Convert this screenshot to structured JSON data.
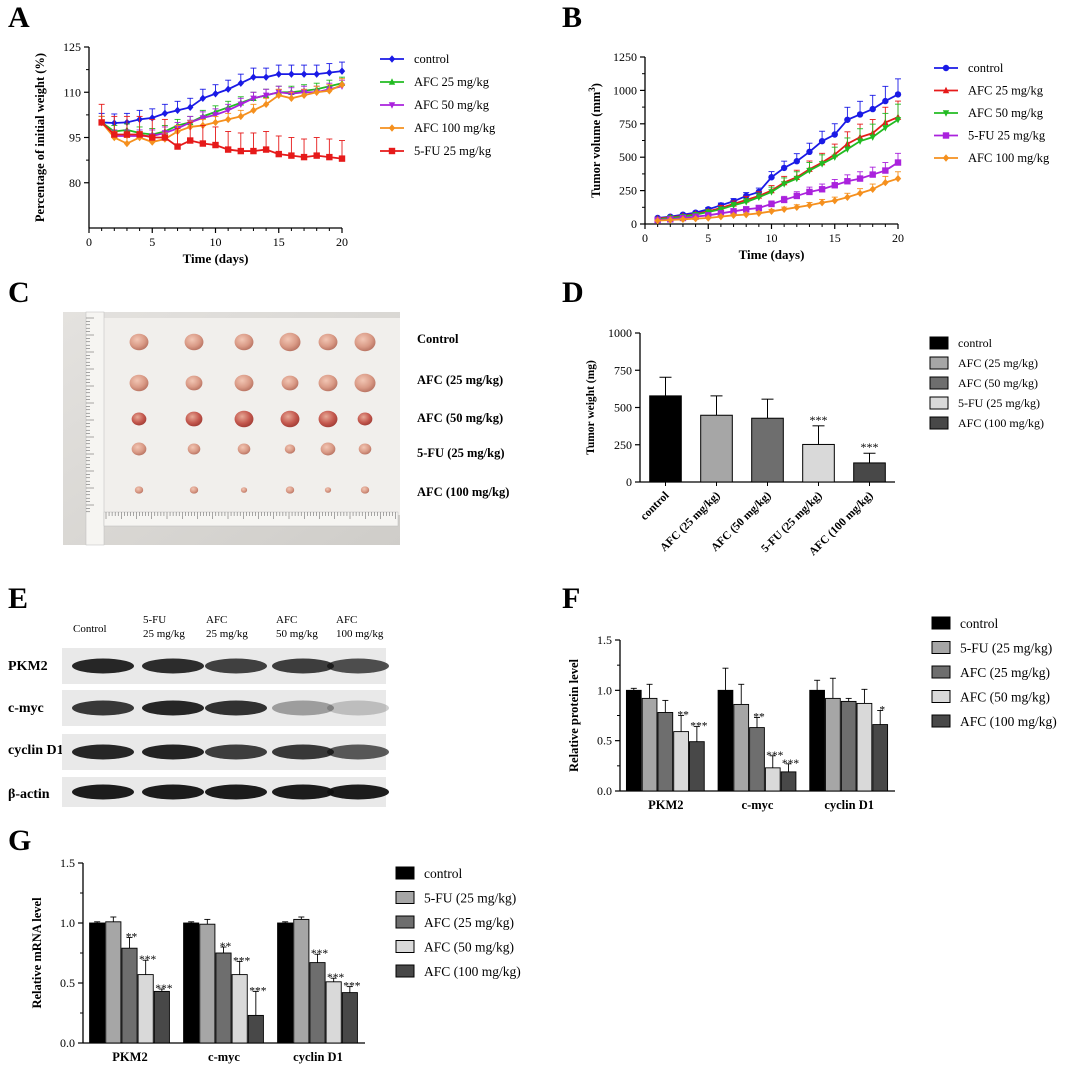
{
  "figure": {
    "panel_letters": [
      "A",
      "B",
      "C",
      "D",
      "E",
      "F",
      "G"
    ],
    "colors": {
      "control": "#1a1ae6",
      "afc25_line": "#22bb22",
      "afc50_line": "#aa22dd",
      "afc100_line": "#f5901e",
      "fu_line": "#e61a1a"
    }
  },
  "chart_data": [
    {
      "panel": "A",
      "type": "line",
      "title": "",
      "xlabel": "Time (days)",
      "ylabel": "Percentage of initial weight (%)",
      "xlim": [
        0,
        20
      ],
      "ylim": [
        65,
        125
      ],
      "xticks": [
        0,
        5,
        10,
        15,
        20
      ],
      "yticks": [
        80,
        95,
        110,
        125
      ],
      "x": [
        1,
        2,
        3,
        4,
        5,
        6,
        7,
        8,
        9,
        10,
        11,
        12,
        13,
        14,
        15,
        16,
        17,
        18,
        19,
        20
      ],
      "series": [
        {
          "name": "control",
          "color": "#1a1ae6",
          "marker": "diamond",
          "err": 3,
          "values": [
            100,
            99.8,
            100,
            101,
            101.5,
            103,
            104,
            105,
            108,
            109.5,
            111,
            113,
            115,
            115,
            116,
            116,
            116,
            116,
            116.5,
            117
          ]
        },
        {
          "name": "AFC 25 mg/kg",
          "color": "#22bb22",
          "marker": "triangle-up",
          "err": 2,
          "values": [
            100,
            97,
            97.5,
            96.5,
            96,
            97,
            99,
            100,
            102,
            103.5,
            105,
            106.5,
            108,
            109,
            110,
            110,
            110.5,
            111,
            112,
            113
          ]
        },
        {
          "name": "AFC 50 mg/kg",
          "color": "#aa22dd",
          "marker": "triangle-down",
          "err": 2,
          "values": [
            100,
            95.5,
            95.5,
            95.5,
            95.5,
            96.5,
            98,
            100,
            101.5,
            102.5,
            104,
            106,
            108,
            109,
            110,
            109.5,
            110,
            110,
            111,
            112
          ]
        },
        {
          "name": "AFC 100 mg/kg",
          "color": "#f5901e",
          "marker": "diamond",
          "err": 2,
          "values": [
            100,
            95,
            93,
            95,
            93.5,
            94.5,
            97,
            98.5,
            99,
            100,
            101,
            102,
            104,
            106,
            109,
            108,
            109,
            110,
            110.5,
            112.5
          ]
        },
        {
          "name": "5-FU 25 mg/kg",
          "color": "#e61a1a",
          "marker": "square",
          "err": 6,
          "values": [
            100,
            96,
            96,
            96,
            95,
            95,
            92,
            94,
            93,
            92.5,
            91,
            90.5,
            90.5,
            91,
            89.5,
            89,
            88.5,
            89,
            88.5,
            88
          ]
        }
      ]
    },
    {
      "panel": "B",
      "type": "line",
      "title": "",
      "xlabel": "Time (days)",
      "ylabel": "Tumor volume (mm",
      "ylabel_sup": "3",
      "ylabel_end": ")",
      "xlim": [
        0,
        20
      ],
      "ylim": [
        0,
        1250
      ],
      "xticks": [
        0,
        5,
        10,
        15,
        20
      ],
      "yticks": [
        0,
        250,
        500,
        750,
        1000,
        1250
      ],
      "x": [
        1,
        2,
        3,
        4,
        5,
        6,
        7,
        8,
        9,
        10,
        11,
        12,
        13,
        14,
        15,
        16,
        17,
        18,
        19,
        20
      ],
      "series": [
        {
          "name": "control",
          "color": "#1a1ae6",
          "marker": "circle",
          "err_frac": 0.12,
          "values": [
            45,
            55,
            70,
            85,
            110,
            140,
            170,
            210,
            240,
            350,
            420,
            470,
            540,
            620,
            670,
            780,
            820,
            860,
            920,
            970
          ]
        },
        {
          "name": "AFC 25 mg/kg",
          "color": "#e61a1a",
          "marker": "triangle-up",
          "err_frac": 0.15,
          "values": [
            40,
            50,
            60,
            75,
            95,
            120,
            150,
            180,
            210,
            250,
            310,
            350,
            410,
            460,
            520,
            600,
            650,
            680,
            760,
            800
          ]
        },
        {
          "name": "AFC 50 mg/kg",
          "color": "#22bb22",
          "marker": "triangle-down",
          "err_frac": 0.15,
          "values": [
            35,
            45,
            55,
            70,
            90,
            110,
            140,
            165,
            200,
            240,
            300,
            340,
            400,
            450,
            500,
            560,
            620,
            650,
            720,
            780
          ]
        },
        {
          "name": "5-FU 25 mg/kg",
          "color": "#aa22dd",
          "marker": "square",
          "err_frac": 0.15,
          "values": [
            30,
            35,
            45,
            55,
            65,
            80,
            95,
            110,
            120,
            150,
            180,
            210,
            240,
            260,
            290,
            320,
            340,
            370,
            400,
            460
          ]
        },
        {
          "name": "AFC 100 mg/kg",
          "color": "#f5901e",
          "marker": "diamond",
          "err_frac": 0.15,
          "values": [
            25,
            30,
            35,
            40,
            45,
            55,
            65,
            70,
            80,
            95,
            110,
            125,
            140,
            160,
            175,
            200,
            230,
            260,
            310,
            340
          ]
        }
      ]
    },
    {
      "panel": "D",
      "type": "bar",
      "xlabel": "",
      "ylabel": "Tumor weight (mg)",
      "ylim": [
        0,
        1000
      ],
      "yticks": [
        0,
        250,
        500,
        750,
        1000
      ],
      "categories": [
        "control",
        "AFC (25 mg/kg)",
        "AFC (50 mg/kg)",
        "5-FU (25 mg/kg)",
        "AFC (100 mg/kg)"
      ],
      "values": [
        578,
        448,
        428,
        252,
        128
      ],
      "errors": [
        125,
        130,
        128,
        125,
        65
      ],
      "significance": [
        "",
        "",
        "",
        "***",
        "***"
      ],
      "bar_colors": [
        "#000000",
        "#a6a6a6",
        "#6e6e6e",
        "#d9d9d9",
        "#484848"
      ],
      "legend": [
        "control",
        "AFC (25 mg/kg)",
        "AFC (50 mg/kg)",
        "5-FU (25 mg/kg)",
        "AFC (100 mg/kg)"
      ]
    },
    {
      "panel": "F",
      "type": "bar",
      "xlabel": "",
      "ylabel": "Relative protein level",
      "ylim": [
        0,
        1.5
      ],
      "yticks": [
        0.0,
        0.5,
        1.0,
        1.5
      ],
      "categories": [
        "PKM2",
        "c-myc",
        "cyclin D1"
      ],
      "series": [
        {
          "name": "control",
          "values": [
            1.0,
            1.0,
            1.0
          ],
          "errors": [
            0.02,
            0.22,
            0.1
          ],
          "sig": [
            "",
            "",
            ""
          ],
          "color": "#000000"
        },
        {
          "name": "5-FU (25 mg/kg)",
          "values": [
            0.92,
            0.86,
            0.92
          ],
          "errors": [
            0.14,
            0.2,
            0.2
          ],
          "sig": [
            "",
            "",
            ""
          ],
          "color": "#a6a6a6"
        },
        {
          "name": "AFC (25 mg/kg)",
          "values": [
            0.78,
            0.63,
            0.89
          ],
          "errors": [
            0.12,
            0.1,
            0.03
          ],
          "sig": [
            "",
            "**",
            ""
          ],
          "color": "#6e6e6e"
        },
        {
          "name": "AFC (50 mg/kg)",
          "values": [
            0.59,
            0.23,
            0.87
          ],
          "errors": [
            0.16,
            0.12,
            0.14
          ],
          "sig": [
            "**",
            "***",
            ""
          ],
          "color": "#d9d9d9"
        },
        {
          "name": "AFC (100 mg/kg)",
          "values": [
            0.49,
            0.19,
            0.66
          ],
          "errors": [
            0.15,
            0.08,
            0.14
          ],
          "sig": [
            "***",
            "***",
            "*"
          ],
          "color": "#484848"
        }
      ]
    },
    {
      "panel": "G",
      "type": "bar",
      "xlabel": "",
      "ylabel": "Relative mRNA level",
      "ylim": [
        0,
        1.5
      ],
      "yticks": [
        0.0,
        0.5,
        1.0,
        1.5
      ],
      "categories": [
        "PKM2",
        "c-myc",
        "cyclin D1"
      ],
      "series": [
        {
          "name": "control",
          "values": [
            1.0,
            1.0,
            1.0
          ],
          "errors": [
            0.01,
            0.01,
            0.01
          ],
          "sig": [
            "",
            "",
            ""
          ],
          "color": "#000000"
        },
        {
          "name": "5-FU (25 mg/kg)",
          "values": [
            1.01,
            0.99,
            1.03
          ],
          "errors": [
            0.04,
            0.04,
            0.02
          ],
          "sig": [
            "",
            "",
            ""
          ],
          "color": "#a6a6a6"
        },
        {
          "name": "AFC (25 mg/kg)",
          "values": [
            0.79,
            0.75,
            0.67
          ],
          "errors": [
            0.09,
            0.05,
            0.07
          ],
          "sig": [
            "**",
            "**",
            "***"
          ],
          "color": "#6e6e6e"
        },
        {
          "name": "AFC (50 mg/kg)",
          "values": [
            0.57,
            0.57,
            0.51
          ],
          "errors": [
            0.12,
            0.11,
            0.03
          ],
          "sig": [
            "***",
            "***",
            "***"
          ],
          "color": "#d9d9d9"
        },
        {
          "name": "AFC (100 mg/kg)",
          "values": [
            0.43,
            0.23,
            0.42
          ],
          "errors": [
            0.02,
            0.2,
            0.05
          ],
          "sig": [
            "***",
            "***",
            "***"
          ],
          "color": "#484848"
        }
      ]
    }
  ],
  "panel_c": {
    "groups": [
      "Control",
      "AFC (25 mg/kg)",
      "AFC (50 mg/kg)",
      "5-FU (25 mg/kg)",
      "AFC (100 mg/kg)"
    ]
  },
  "panel_e": {
    "lanes": [
      {
        "line1": "Control",
        "line2": ""
      },
      {
        "line1": "5-FU",
        "line2": "25 mg/kg"
      },
      {
        "line1": "AFC",
        "line2": "25 mg/kg"
      },
      {
        "line1": "AFC",
        "line2": "50 mg/kg"
      },
      {
        "line1": "AFC",
        "line2": "100 mg/kg"
      }
    ],
    "proteins": [
      "PKM2",
      "c-myc",
      "cyclin D1",
      "β-actin"
    ],
    "band_intensity": [
      [
        0.9,
        0.88,
        0.78,
        0.8,
        0.72
      ],
      [
        0.82,
        0.9,
        0.85,
        0.35,
        0.2
      ],
      [
        0.9,
        0.92,
        0.8,
        0.82,
        0.68
      ],
      [
        0.95,
        0.95,
        0.95,
        0.95,
        0.95
      ]
    ]
  }
}
